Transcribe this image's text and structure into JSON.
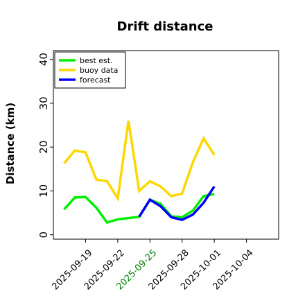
{
  "chart_data": {
    "type": "line",
    "title": "Drift distance",
    "xlabel": "",
    "ylabel": "Distance (km)",
    "ylim": [
      -1,
      42
    ],
    "yticks": [
      0,
      10,
      20,
      30,
      40
    ],
    "xlim": [
      "2025-09-16",
      "2025-10-07"
    ],
    "xticks": [
      {
        "date": "2025-09-19",
        "label": "2025-09-19",
        "color": "#000000"
      },
      {
        "date": "2025-09-22",
        "label": "2025-09-22",
        "color": "#000000"
      },
      {
        "date": "2025-09-25",
        "label": "2025-09-25",
        "color": "#008000"
      },
      {
        "date": "2025-09-28",
        "label": "2025-09-28",
        "color": "#000000"
      },
      {
        "date": "2025-10-01",
        "label": "2025-10-01",
        "color": "#000000"
      },
      {
        "date": "2025-10-04",
        "label": "2025-10-04",
        "color": "#000000"
      }
    ],
    "legend_position": "top-left",
    "grid": false,
    "series": [
      {
        "name": "best est.",
        "color": "#00ee00",
        "points": [
          [
            "2025-09-17",
            5.8
          ],
          [
            "2025-09-18",
            8.5
          ],
          [
            "2025-09-19",
            8.6
          ],
          [
            "2025-09-20",
            6.2
          ],
          [
            "2025-09-21",
            2.8
          ],
          [
            "2025-09-22",
            3.5
          ],
          [
            "2025-09-23",
            3.8
          ],
          [
            "2025-09-24",
            4.1
          ],
          [
            "2025-09-25",
            8.0
          ],
          [
            "2025-09-26",
            7.0
          ],
          [
            "2025-09-27",
            4.2
          ],
          [
            "2025-09-28",
            4.0
          ],
          [
            "2025-09-29",
            5.5
          ],
          [
            "2025-09-30",
            8.8
          ],
          [
            "2025-10-01",
            9.3
          ]
        ]
      },
      {
        "name": "buoy data",
        "color": "#ffd700",
        "points": [
          [
            "2025-09-17",
            16.3
          ],
          [
            "2025-09-18",
            19.2
          ],
          [
            "2025-09-19",
            18.8
          ],
          [
            "2025-09-20",
            12.6
          ],
          [
            "2025-09-21",
            12.2
          ],
          [
            "2025-09-22",
            8.3
          ],
          [
            "2025-09-23",
            26.0
          ],
          [
            "2025-09-24",
            10.0
          ],
          [
            "2025-09-25",
            12.2
          ],
          [
            "2025-09-26",
            11.0
          ],
          [
            "2025-09-27",
            8.8
          ],
          [
            "2025-09-28",
            9.4
          ],
          [
            "2025-09-29",
            16.5
          ],
          [
            "2025-09-30",
            22.0
          ],
          [
            "2025-10-01",
            18.2
          ]
        ]
      },
      {
        "name": "forecast",
        "color": "#0000ff",
        "points": [
          [
            "2025-09-24",
            4.1
          ],
          [
            "2025-09-25",
            8.0
          ],
          [
            "2025-09-26",
            6.5
          ],
          [
            "2025-09-27",
            4.0
          ],
          [
            "2025-09-28",
            3.4
          ],
          [
            "2025-09-29",
            4.6
          ],
          [
            "2025-09-30",
            7.3
          ],
          [
            "2025-10-01",
            11.0
          ]
        ]
      }
    ]
  }
}
